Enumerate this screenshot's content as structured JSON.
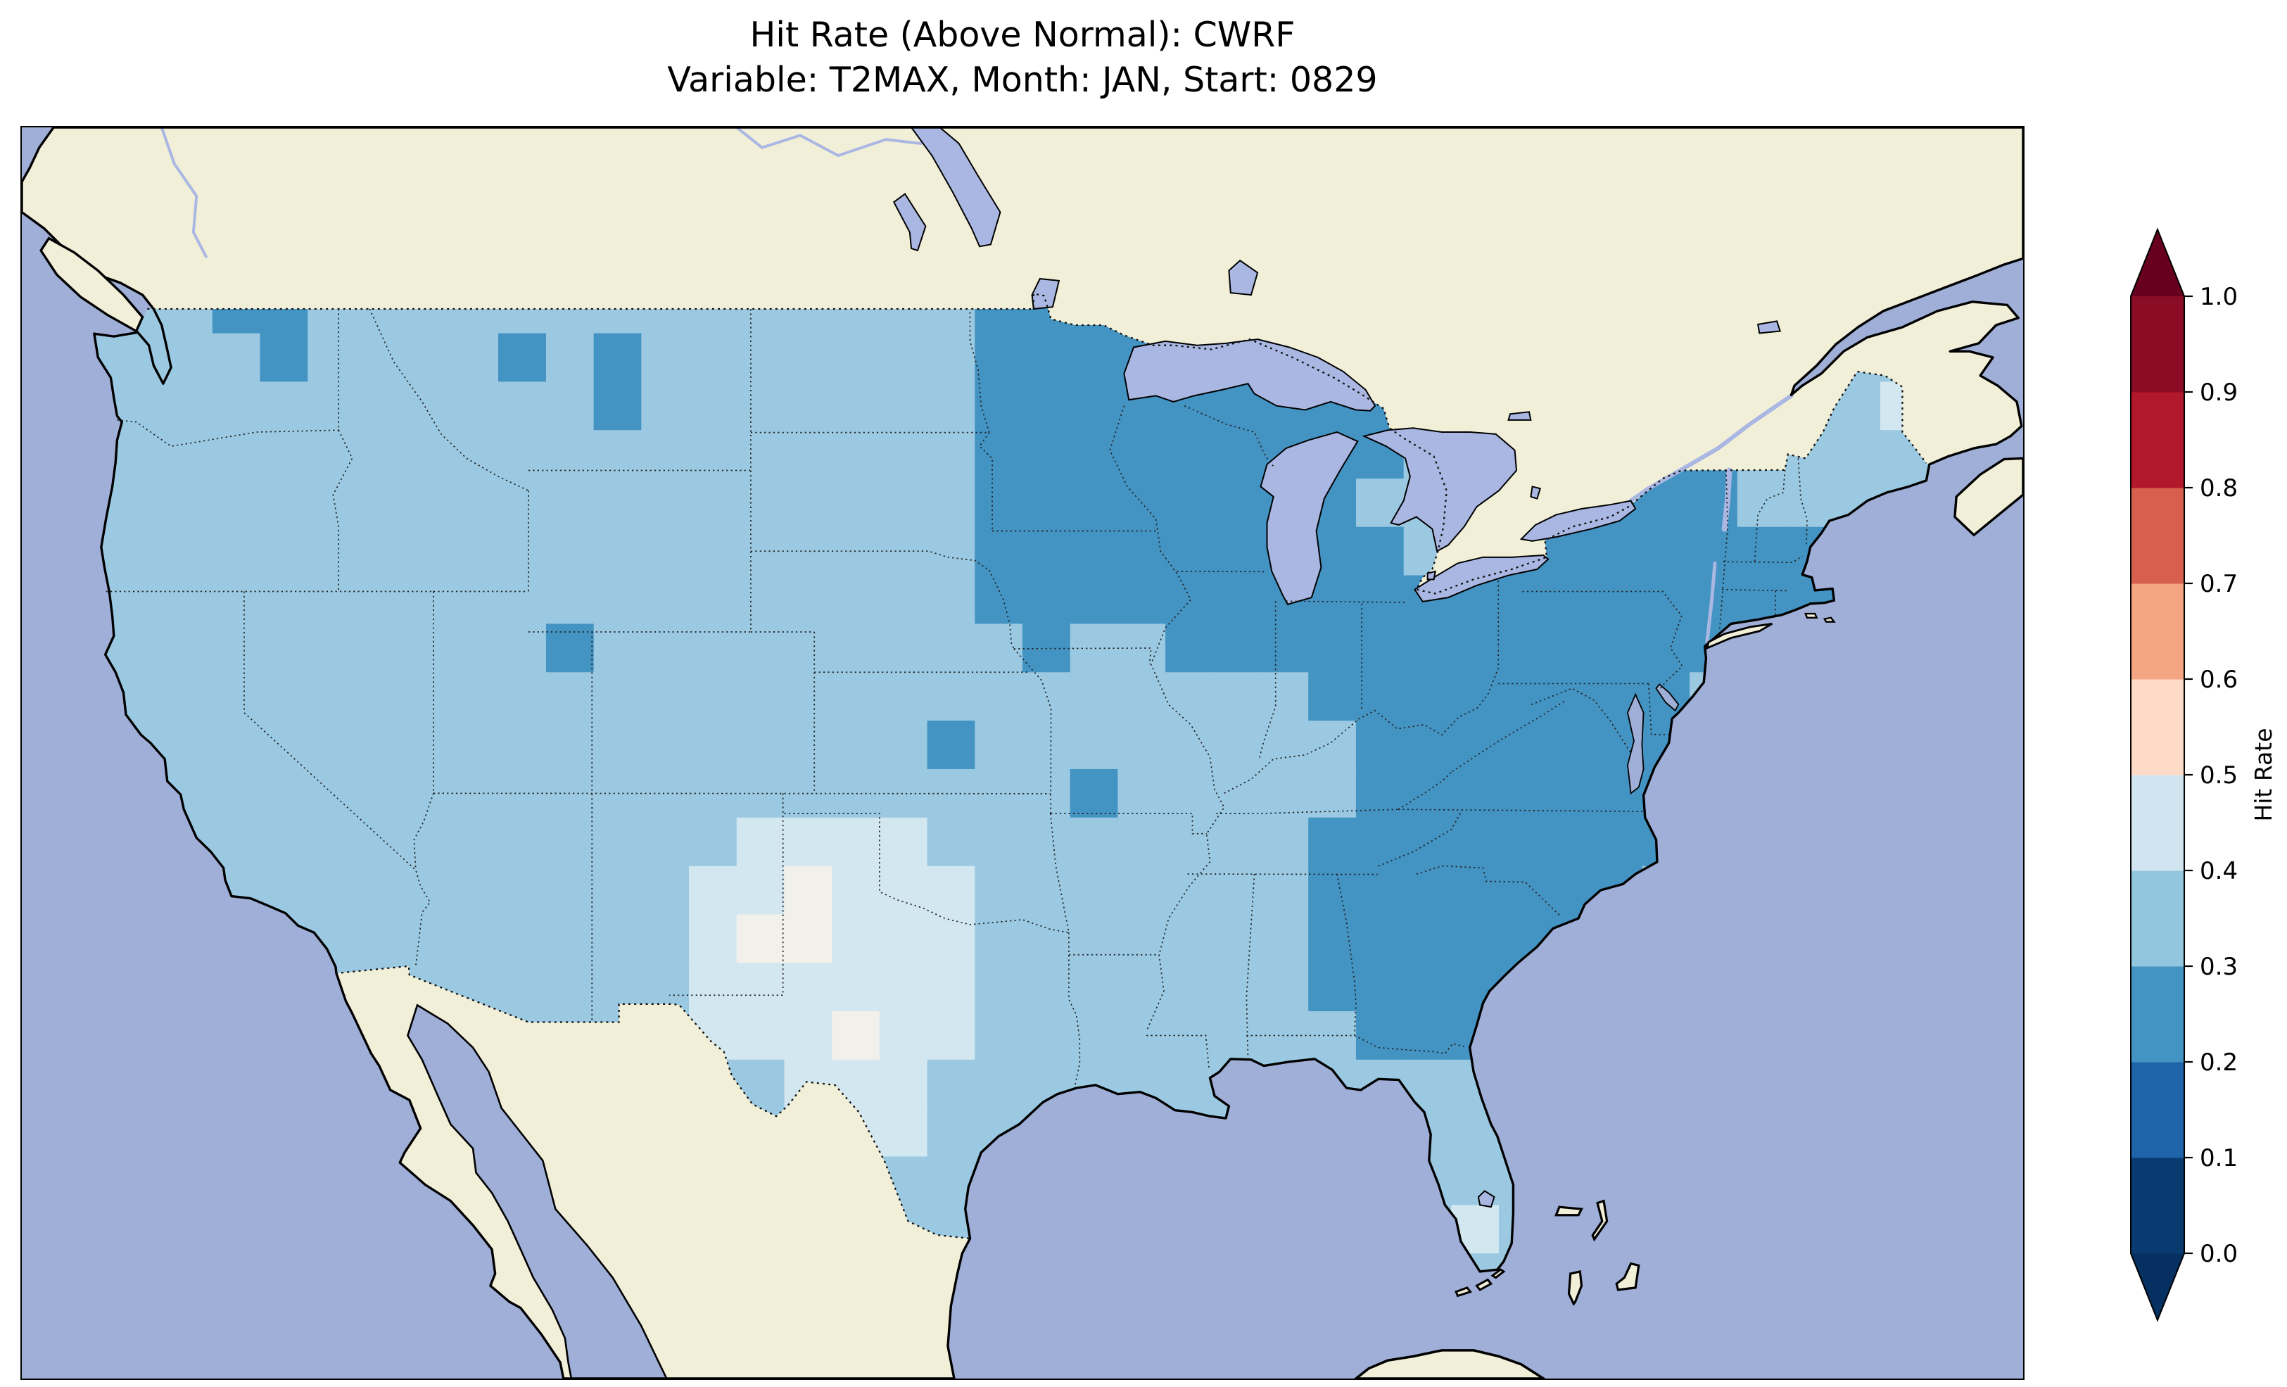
{
  "title": {
    "line1": "Hit Rate (Above Normal): CWRF",
    "line2": "Variable: T2MAX, Month: JAN, Start: 0829"
  },
  "chart_data": {
    "type": "heatmap",
    "title": "Hit Rate (Above Normal): CWRF",
    "subtitle": "Variable: T2MAX, Month: JAN, Start: 0829",
    "metric": "Hit Rate (Above Normal)",
    "model": "CWRF",
    "variable": "T2MAX",
    "month": "JAN",
    "start": "0829",
    "colorbar": {
      "label": "Hit Rate",
      "ticks": [
        "0.0",
        "0.1",
        "0.2",
        "0.3",
        "0.4",
        "0.5",
        "0.6",
        "0.7",
        "0.8",
        "0.9",
        "1.0"
      ],
      "tick_values": [
        0.0,
        0.1,
        0.2,
        0.3,
        0.4,
        0.5,
        0.6,
        0.7,
        0.8,
        0.9,
        1.0
      ],
      "bin_colors_bottom_to_top": [
        "#0a3b70",
        "#1f63a8",
        "#4393c3",
        "#92c5de",
        "#d1e5f0",
        "#fddbc7",
        "#f4a582",
        "#d6604d",
        "#b2182b",
        "#8a0c25"
      ],
      "arrow_low_color": "#053061",
      "arrow_high_color": "#67001f",
      "extend": "both"
    },
    "map": {
      "extent_lon": [
        -127,
        -64
      ],
      "extent_lat": [
        22.5,
        53.5
      ],
      "ocean_color": "#9fafd7",
      "land_color": "#f2efd9",
      "lake_color": "#a9b7e2"
    },
    "grid": {
      "description": "Hit-rate bins over CONUS; digit = bin: 2 is 0.2-0.3, 3 is 0.3-0.4, 4 is 0.4-0.5, 5 is 0.5-0.6. Grid cells 1.5 deg lon x 1.2 deg lat, clipped to the US boundary.",
      "lon_min": -125.5,
      "lon_step": 1.5,
      "lat_max": 49.6,
      "lat_step": 1.2,
      "legend": {
        "2": "0.2-0.3",
        "3": "0.3-0.4",
        "4": "0.4-0.5",
        "5": "0.5-0.6"
      },
      "value_colors": {
        "2": "#4393c3",
        "3": "#9ac9e1",
        "4": "#d3e7f1",
        "5": "#f2f0ea"
      },
      "rows": [
        "3332233333333333333222222333333333333333",
        "3333233332323333333222222333333333333333",
        "3333333333323333333222222222333333333343",
        "3333333333333333333222222222333332233333",
        "3333333333333333333222222223333222233333",
        "3333333333333333333222222222332222222233",
        "3333333333333333333222222222222222222333",
        "3333333333233333333323322222222222233333",
        "3333333333333333333333333322222222333333",
        "3333333333333333332333333332222222333333",
        "3333333333333333333332333332222222333333",
        "3333333333333344443333333322222222333333",
        "3333333333333445444333333322222223333333",
        "3333333333333455444333333322222233333333",
        "3333333333333444444333333322222333333333",
        "3333333333333444544333333332223333333333",
        "3333333333333334443333333333333333333333",
        "3333333333333333443333333333333333333333",
        "3333333333333333333333333333333333333333",
        "3333333333333333333333333333343333333333",
        "3333333333333333333333333333533333333333"
      ]
    },
    "summary": {
      "typical_range": "0.2-0.5",
      "low_0_2_to_0_3": "Upper Midwest (MN, IA, WI, MI), Great Lakes, Northeast, Mid-Atlantic, Appalachians, Southeast coast (VA-GA, eastern AL)",
      "mid_0_3_to_0_4": "Western US, Great Plains, lower Mississippi valley, Gulf Coast, Florida",
      "high_0_4_to_0_6": "West Texas, eastern New Mexico, Texas panhandle, Oklahoma west, central/south Texas (palest patches near 0.5)"
    }
  }
}
